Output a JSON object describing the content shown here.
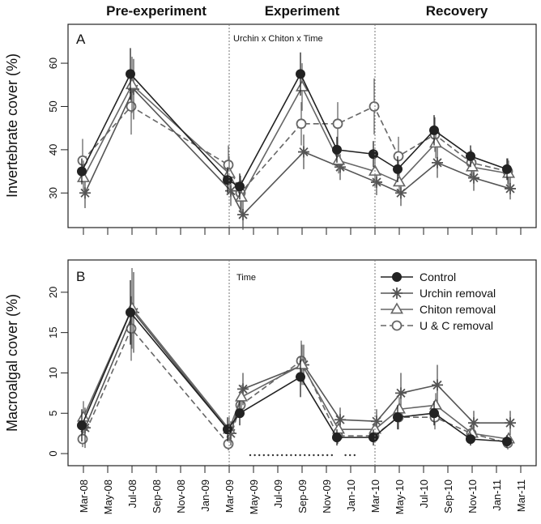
{
  "figure": {
    "phases": [
      "Pre-experiment",
      "Experiment",
      "Recovery"
    ],
    "x_ticks": [
      "Mar-08",
      "May-08",
      "Jul-08",
      "Sep-08",
      "Nov-08",
      "Jan-09",
      "Mar-09",
      "May-09",
      "Jul-09",
      "Sep-09",
      "Nov-09",
      "Jan-10",
      "Mar-10",
      "May-10",
      "Jul-10",
      "Sep-10",
      "Nov-10",
      "Jan-11",
      "Mar-11"
    ],
    "legend": [
      "Control",
      "Urchin removal",
      "Chiton removal",
      "U & C removal"
    ],
    "colors": {
      "control": "#222222",
      "urchin": "#555555",
      "chiton": "#666666",
      "uc": "#666666"
    }
  },
  "chart_data": [
    {
      "type": "line",
      "panel_label": "A",
      "annotation": "Urchin x Chiton x Time",
      "ylabel": "Invertebrate cover (%)",
      "yticks": [
        30,
        40,
        50,
        60
      ],
      "ylim": [
        22,
        69
      ],
      "x": [
        "Mar-08",
        "Jul-08",
        "Mar-09",
        "Apr-09",
        "Sep-09",
        "Dec-09",
        "Mar-10",
        "May-10",
        "Aug-10",
        "Nov-10",
        "Feb-11"
      ],
      "series": [
        {
          "name": "Control",
          "values": [
            35,
            57.5,
            33,
            31.5,
            57.5,
            40,
            39,
            35.5,
            44.5,
            38.5,
            35.5
          ],
          "err": [
            3,
            6,
            3,
            3,
            5,
            3,
            3,
            3,
            3.5,
            2.5,
            2.5
          ]
        },
        {
          "name": "Urchin removal",
          "values": [
            30,
            54,
            30.5,
            25,
            39.5,
            36,
            32.5,
            30,
            37,
            33.5,
            31
          ],
          "err": [
            3.5,
            7,
            3.5,
            3.5,
            4,
            3,
            3,
            3,
            3.5,
            3,
            2.5
          ]
        },
        {
          "name": "Chiton removal",
          "values": [
            33.5,
            55,
            34.5,
            29,
            54.5,
            37.5,
            35,
            32.5,
            41.5,
            36,
            34.5
          ],
          "err": [
            4,
            6.5,
            4,
            4,
            5.5,
            3,
            3.5,
            3,
            3.5,
            3,
            3
          ]
        },
        {
          "name": "U & C removal",
          "values": [
            37.5,
            50,
            36.5,
            30,
            46,
            46,
            50,
            38.5,
            43.5,
            37,
            35
          ],
          "err": [
            5,
            6.5,
            4.5,
            4,
            5,
            5,
            6.5,
            4.5,
            4,
            3,
            3
          ]
        }
      ]
    },
    {
      "type": "line",
      "panel_label": "B",
      "annotation": "Time",
      "ylabel": "Macroalgal cover (%)",
      "yticks": [
        0,
        5,
        10,
        15,
        20
      ],
      "ylim": [
        -1.5,
        24
      ],
      "x": [
        "Mar-08",
        "Jul-08",
        "Mar-09",
        "Apr-09",
        "Sep-09",
        "Dec-09",
        "Mar-10",
        "May-10",
        "Aug-10",
        "Nov-10",
        "Feb-11"
      ],
      "series": [
        {
          "name": "Control",
          "values": [
            3.5,
            17.5,
            3,
            5,
            9.5,
            2,
            2,
            4.5,
            5,
            1.8,
            1.5
          ],
          "err": [
            2,
            4,
            1.5,
            1.5,
            2.5,
            1,
            1,
            1.5,
            1.5,
            0.8,
            0.8
          ]
        },
        {
          "name": "Urchin removal",
          "values": [
            3.2,
            17.5,
            2.5,
            8,
            11,
            4.2,
            4,
            7.5,
            8.5,
            3.8,
            3.8
          ],
          "err": [
            2.5,
            5,
            1.5,
            2,
            2.5,
            1.5,
            1.5,
            2.5,
            2.5,
            1.5,
            1.5
          ]
        },
        {
          "name": "Chiton removal",
          "values": [
            4.5,
            18,
            3,
            7,
            11,
            3,
            3,
            5.5,
            6,
            2.5,
            1.8
          ],
          "err": [
            2,
            5,
            1.5,
            1.5,
            2.5,
            1,
            1,
            1.5,
            1.5,
            1,
            0.8
          ]
        },
        {
          "name": "U & C removal",
          "values": [
            1.8,
            15.5,
            1.2,
            6,
            11.5,
            2.2,
            2.2,
            4.5,
            4.5,
            2.5,
            1.3
          ],
          "err": [
            1,
            4,
            0.8,
            1.5,
            2.5,
            1,
            0.8,
            1.5,
            1.5,
            1,
            0.8
          ]
        }
      ]
    }
  ]
}
